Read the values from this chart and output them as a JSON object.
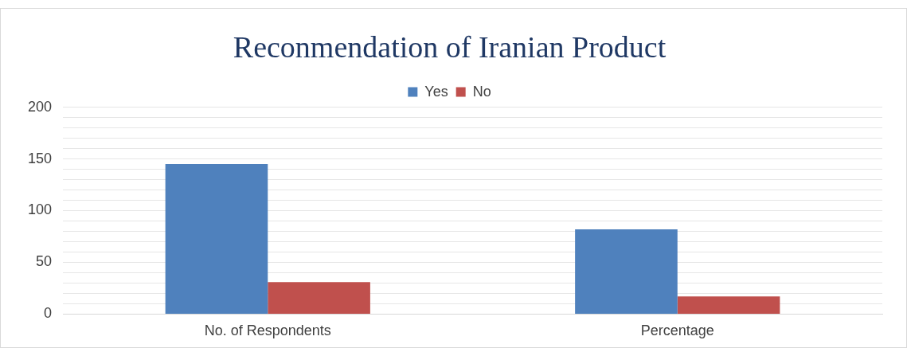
{
  "chart_data": {
    "type": "bar",
    "title": "Reconmendation of Iranian Product",
    "categories": [
      "No. of Respondents",
      "Percentage"
    ],
    "series": [
      {
        "name": "Yes",
        "color": "#4f81bd",
        "values": [
          145,
          82
        ]
      },
      {
        "name": "No",
        "color": "#c0504d",
        "values": [
          31,
          17
        ]
      }
    ],
    "ylim": [
      0,
      200
    ],
    "yticks": [
      0,
      {
        "value": 10,
        "label": null
      },
      {
        "value": 20,
        "label": null
      },
      {
        "value": 30,
        "label": null
      },
      {
        "value": 40,
        "label": null
      },
      50,
      {
        "value": 60,
        "label": null
      },
      {
        "value": 70,
        "label": null
      },
      {
        "value": 80,
        "label": null
      },
      {
        "value": 90,
        "label": null
      },
      100,
      {
        "value": 110,
        "label": null
      },
      {
        "value": 120,
        "label": null
      },
      {
        "value": 130,
        "label": null
      },
      {
        "value": 140,
        "label": null
      },
      150,
      {
        "value": 160,
        "label": null
      },
      {
        "value": 170,
        "label": null
      },
      {
        "value": 180,
        "label": null
      },
      {
        "value": 190,
        "label": null
      },
      200
    ],
    "grid": "y",
    "legend": "top"
  }
}
